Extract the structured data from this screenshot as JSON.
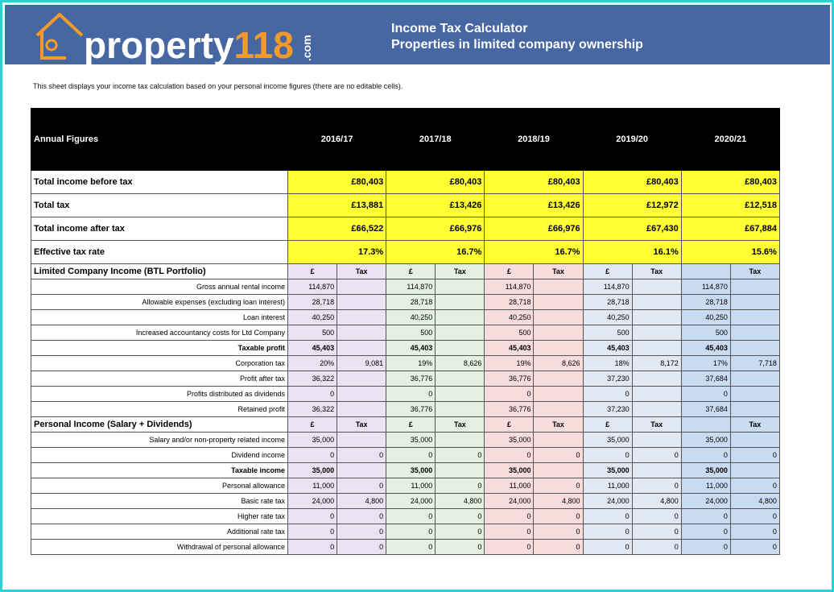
{
  "header": {
    "logo": "property",
    "logo_number": "118",
    "logo_suffix": ".com",
    "title": "Income Tax Calculator",
    "subtitle": "Properties in limited company ownership"
  },
  "intro": "This sheet displays your income tax calculation based on your personal income figures (there are no editable cells).",
  "table": {
    "corner": "Annual Figures",
    "years": [
      "2016/17",
      "2017/18",
      "2018/19",
      "2019/20",
      "2020/21"
    ],
    "summary": [
      {
        "label": "Total income before tax",
        "values": [
          "£80,403",
          "£80,403",
          "£80,403",
          "£80,403",
          "£80,403"
        ]
      },
      {
        "label": "Total tax",
        "values": [
          "£13,881",
          "£13,426",
          "£13,426",
          "£12,972",
          "£12,518"
        ]
      },
      {
        "label": "Total income after tax",
        "values": [
          "£66,522",
          "£66,976",
          "£66,976",
          "£67,430",
          "£67,884"
        ]
      },
      {
        "label": "Effective tax rate",
        "values": [
          "17.3%",
          "16.7%",
          "16.7%",
          "16.1%",
          "15.6%"
        ]
      }
    ],
    "sections": [
      {
        "title": "Limited Company Income (BTL Portfolio)",
        "column_heads": [
          [
            "£",
            "Tax"
          ],
          [
            "£",
            "Tax"
          ],
          [
            "£",
            "Tax"
          ],
          [
            "£",
            "Tax"
          ],
          [
            null,
            "Tax"
          ]
        ],
        "rows": [
          {
            "label": "Gross annual rental income",
            "cells": [
              [
                "114,870",
                null
              ],
              [
                "114,870",
                null
              ],
              [
                "114,870",
                null
              ],
              [
                "114,870",
                null
              ],
              [
                "114,870",
                null
              ]
            ]
          },
          {
            "label": "Allowable expenses (excluding loan interest)",
            "cells": [
              [
                "28,718",
                null
              ],
              [
                "28,718",
                null
              ],
              [
                "28,718",
                null
              ],
              [
                "28,718",
                null
              ],
              [
                "28,718",
                null
              ]
            ]
          },
          {
            "label": "Loan interest",
            "cells": [
              [
                "40,250",
                null
              ],
              [
                "40,250",
                null
              ],
              [
                "40,250",
                null
              ],
              [
                "40,250",
                null
              ],
              [
                "40,250",
                null
              ]
            ]
          },
          {
            "label": "Increased accountancy costs for Ltd Company",
            "cells": [
              [
                "500",
                null
              ],
              [
                "500",
                null
              ],
              [
                "500",
                null
              ],
              [
                "500",
                null
              ],
              [
                "500",
                null
              ]
            ]
          },
          {
            "label": "Taxable profit",
            "cells": [
              [
                "45,403",
                null
              ],
              [
                "45,403",
                null
              ],
              [
                "45,403",
                null
              ],
              [
                "45,403",
                null
              ],
              [
                "45,403",
                null
              ]
            ]
          },
          {
            "label": "Corporation tax",
            "cells": [
              [
                "20%",
                "9,081"
              ],
              [
                "19%",
                "8,626"
              ],
              [
                "19%",
                "8,626"
              ],
              [
                "18%",
                "8,172"
              ],
              [
                "17%",
                "7,718"
              ]
            ]
          },
          {
            "label": "Profit after tax",
            "cells": [
              [
                "36,322",
                null
              ],
              [
                "36,776",
                null
              ],
              [
                "36,776",
                null
              ],
              [
                "37,230",
                null
              ],
              [
                "37,684",
                null
              ]
            ]
          },
          {
            "label": "Profits distributed as dividends",
            "cells": [
              [
                "0",
                null
              ],
              [
                "0",
                null
              ],
              [
                "0",
                null
              ],
              [
                "0",
                null
              ],
              [
                "0",
                null
              ]
            ]
          },
          {
            "label": "Retained profit",
            "cells": [
              [
                "36,322",
                null
              ],
              [
                "36,776",
                null
              ],
              [
                "36,776",
                null
              ],
              [
                "37,230",
                null
              ],
              [
                "37,684",
                null
              ]
            ]
          }
        ]
      },
      {
        "title": "Personal Income (Salary + Dividends)",
        "column_heads": [
          [
            "£",
            "Tax"
          ],
          [
            "£",
            "Tax"
          ],
          [
            "£",
            "Tax"
          ],
          [
            "£",
            "Tax"
          ],
          [
            null,
            "Tax"
          ]
        ],
        "rows": [
          {
            "label": "Salary and/or non-property related income",
            "cells": [
              [
                "35,000",
                null
              ],
              [
                "35,000",
                null
              ],
              [
                "35,000",
                null
              ],
              [
                "35,000",
                null
              ],
              [
                "35,000",
                null
              ]
            ]
          },
          {
            "label": "Dividend income",
            "cells": [
              [
                "0",
                "0"
              ],
              [
                "0",
                "0"
              ],
              [
                "0",
                "0"
              ],
              [
                "0",
                "0"
              ],
              [
                "0",
                "0"
              ]
            ]
          },
          {
            "label": "Taxable income",
            "cells": [
              [
                "35,000",
                null
              ],
              [
                "35,000",
                null
              ],
              [
                "35,000",
                null
              ],
              [
                "35,000",
                null
              ],
              [
                "35,000",
                null
              ]
            ]
          },
          {
            "label": "Personal allowance",
            "cells": [
              [
                "11,000",
                "0"
              ],
              [
                "11,000",
                "0"
              ],
              [
                "11,000",
                "0"
              ],
              [
                "11,000",
                "0"
              ],
              [
                "11,000",
                "0"
              ]
            ]
          },
          {
            "label": "Basic rate tax",
            "cells": [
              [
                "24,000",
                "4,800"
              ],
              [
                "24,000",
                "4,800"
              ],
              [
                "24,000",
                "4,800"
              ],
              [
                "24,000",
                "4,800"
              ],
              [
                "24,000",
                "4,800"
              ]
            ]
          },
          {
            "label": "Higher rate tax",
            "cells": [
              [
                "0",
                "0"
              ],
              [
                "0",
                "0"
              ],
              [
                "0",
                "0"
              ],
              [
                "0",
                "0"
              ],
              [
                "0",
                "0"
              ]
            ]
          },
          {
            "label": "Additional rate tax",
            "cells": [
              [
                "0",
                "0"
              ],
              [
                "0",
                "0"
              ],
              [
                "0",
                "0"
              ],
              [
                "0",
                "0"
              ],
              [
                "0",
                "0"
              ]
            ]
          },
          {
            "label": "Withdrawal of personal allowance",
            "cells": [
              [
                "0",
                "0"
              ],
              [
                "0",
                "0"
              ],
              [
                "0",
                "0"
              ],
              [
                "0",
                "0"
              ],
              [
                "0",
                "0"
              ]
            ]
          }
        ]
      }
    ]
  }
}
